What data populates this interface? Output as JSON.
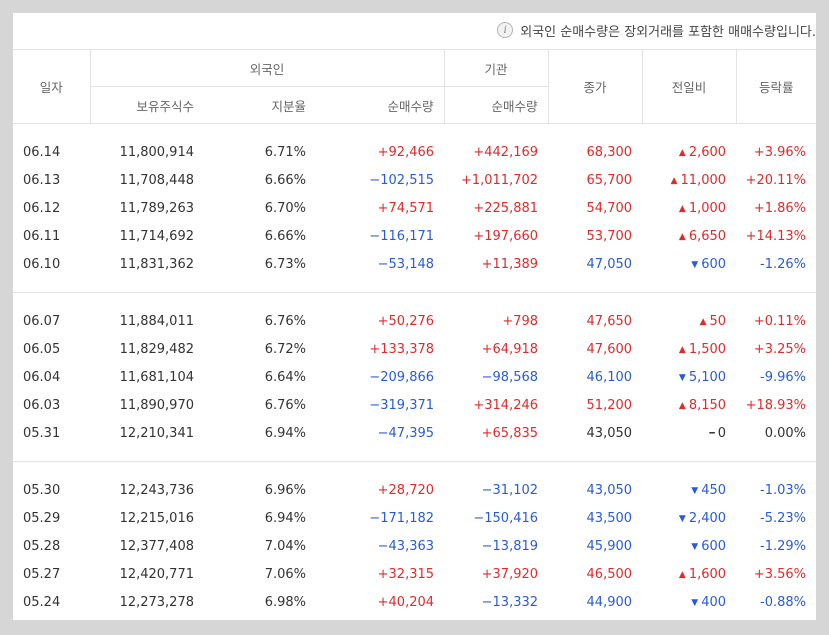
{
  "notice": {
    "icon": "info-icon",
    "text": "외국인 순매수량은 장외거래를 포함한 매매수량입니다."
  },
  "headers": {
    "date": "일자",
    "foreign": "외국인",
    "foreign_holdings": "보유주식수",
    "foreign_ratio": "지분율",
    "foreign_net": "순매수량",
    "institution": "기관",
    "institution_net": "순매수량",
    "close": "종가",
    "change": "전일비",
    "rate": "등락률"
  },
  "colors": {
    "up": "#e12a2a",
    "down": "#2a5bd7"
  },
  "groups": [
    [
      {
        "date": "06.14",
        "holdings": "11,800,914",
        "ratio": "6.71%",
        "foreign_net": "+92,466",
        "inst_net": "+442,169",
        "close": "68,300",
        "change": "2,600",
        "dir": "up",
        "rate": "+3.96%"
      },
      {
        "date": "06.13",
        "holdings": "11,708,448",
        "ratio": "6.66%",
        "foreign_net": "−102,515",
        "inst_net": "+1,011,702",
        "close": "65,700",
        "change": "11,000",
        "dir": "up",
        "rate": "+20.11%"
      },
      {
        "date": "06.12",
        "holdings": "11,789,263",
        "ratio": "6.70%",
        "foreign_net": "+74,571",
        "inst_net": "+225,881",
        "close": "54,700",
        "change": "1,000",
        "dir": "up",
        "rate": "+1.86%"
      },
      {
        "date": "06.11",
        "holdings": "11,714,692",
        "ratio": "6.66%",
        "foreign_net": "−116,171",
        "inst_net": "+197,660",
        "close": "53,700",
        "change": "6,650",
        "dir": "up",
        "rate": "+14.13%"
      },
      {
        "date": "06.10",
        "holdings": "11,831,362",
        "ratio": "6.73%",
        "foreign_net": "−53,148",
        "inst_net": "+11,389",
        "close": "47,050",
        "change": "600",
        "dir": "down",
        "rate": "-1.26%"
      }
    ],
    [
      {
        "date": "06.07",
        "holdings": "11,884,011",
        "ratio": "6.76%",
        "foreign_net": "+50,276",
        "inst_net": "+798",
        "close": "47,650",
        "change": "50",
        "dir": "up",
        "rate": "+0.11%"
      },
      {
        "date": "06.05",
        "holdings": "11,829,482",
        "ratio": "6.72%",
        "foreign_net": "+133,378",
        "inst_net": "+64,918",
        "close": "47,600",
        "change": "1,500",
        "dir": "up",
        "rate": "+3.25%"
      },
      {
        "date": "06.04",
        "holdings": "11,681,104",
        "ratio": "6.64%",
        "foreign_net": "−209,866",
        "inst_net": "−98,568",
        "close": "46,100",
        "change": "5,100",
        "dir": "down",
        "rate": "-9.96%"
      },
      {
        "date": "06.03",
        "holdings": "11,890,970",
        "ratio": "6.76%",
        "foreign_net": "−319,371",
        "inst_net": "+314,246",
        "close": "51,200",
        "change": "8,150",
        "dir": "up",
        "rate": "+18.93%"
      },
      {
        "date": "05.31",
        "holdings": "12,210,341",
        "ratio": "6.94%",
        "foreign_net": "−47,395",
        "inst_net": "+65,835",
        "close": "43,050",
        "change": "0",
        "dir": "flat",
        "rate": "0.00%"
      }
    ],
    [
      {
        "date": "05.30",
        "holdings": "12,243,736",
        "ratio": "6.96%",
        "foreign_net": "+28,720",
        "inst_net": "−31,102",
        "close": "43,050",
        "change": "450",
        "dir": "down",
        "rate": "-1.03%"
      },
      {
        "date": "05.29",
        "holdings": "12,215,016",
        "ratio": "6.94%",
        "foreign_net": "−171,182",
        "inst_net": "−150,416",
        "close": "43,500",
        "change": "2,400",
        "dir": "down",
        "rate": "-5.23%"
      },
      {
        "date": "05.28",
        "holdings": "12,377,408",
        "ratio": "7.04%",
        "foreign_net": "−43,363",
        "inst_net": "−13,819",
        "close": "45,900",
        "change": "600",
        "dir": "down",
        "rate": "-1.29%"
      },
      {
        "date": "05.27",
        "holdings": "12,420,771",
        "ratio": "7.06%",
        "foreign_net": "+32,315",
        "inst_net": "+37,920",
        "close": "46,500",
        "change": "1,600",
        "dir": "up",
        "rate": "+3.56%"
      },
      {
        "date": "05.24",
        "holdings": "12,273,278",
        "ratio": "6.98%",
        "foreign_net": "+40,204",
        "inst_net": "−13,332",
        "close": "44,900",
        "change": "400",
        "dir": "down",
        "rate": "-0.88%"
      }
    ]
  ]
}
